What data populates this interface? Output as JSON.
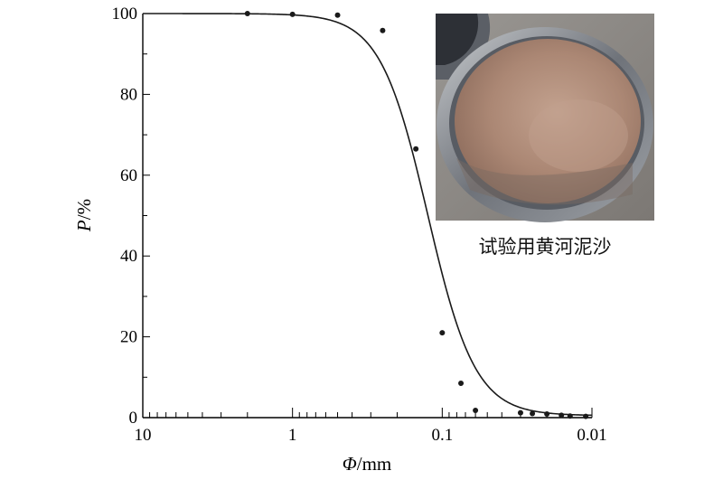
{
  "chart_data": {
    "type": "scatter",
    "title": "",
    "xlabel": {
      "symbol": "Φ",
      "unit": "/mm"
    },
    "ylabel": {
      "symbol": "P",
      "unit": "/%"
    },
    "x_scale": "log",
    "x_reversed": true,
    "xlim": [
      10,
      0.01
    ],
    "ylim": [
      0,
      100
    ],
    "x_ticks": [
      {
        "value": 10,
        "label": "10"
      },
      {
        "value": 1,
        "label": "1"
      },
      {
        "value": 0.1,
        "label": "0.1"
      },
      {
        "value": 0.01,
        "label": "0.01"
      }
    ],
    "y_ticks": [
      {
        "value": 0,
        "label": "0"
      },
      {
        "value": 20,
        "label": "20"
      },
      {
        "value": 40,
        "label": "40"
      },
      {
        "value": 60,
        "label": "60"
      },
      {
        "value": 80,
        "label": "80"
      },
      {
        "value": 100,
        "label": "100"
      }
    ],
    "grid": false,
    "series": [
      {
        "type": "scatter",
        "color": "#1a1a1a",
        "points": [
          {
            "x": 2.0,
            "y": 100
          },
          {
            "x": 1.0,
            "y": 99.8
          },
          {
            "x": 0.5,
            "y": 99.6
          },
          {
            "x": 0.25,
            "y": 95.8
          },
          {
            "x": 0.15,
            "y": 66.5
          },
          {
            "x": 0.1,
            "y": 21
          },
          {
            "x": 0.075,
            "y": 8.5
          },
          {
            "x": 0.06,
            "y": 1.8
          },
          {
            "x": 0.03,
            "y": 1.2
          },
          {
            "x": 0.025,
            "y": 1.0
          },
          {
            "x": 0.02,
            "y": 0.9
          },
          {
            "x": 0.016,
            "y": 0.6
          },
          {
            "x": 0.014,
            "y": 0.4
          },
          {
            "x": 0.011,
            "y": 0.3
          }
        ]
      },
      {
        "type": "line",
        "color": "#1a1a1a",
        "fit": {
          "d50": 0.125,
          "steepness": 6.3,
          "upper": 100,
          "lower": 0.5
        }
      }
    ]
  },
  "inset": {
    "caption": "试验用黄河泥沙",
    "colors": {
      "background": "#8e8a86",
      "ring": "#6d7177",
      "ring_highlight": "#b7babd",
      "sand": "#a27f6c",
      "sand_light": "#c2a08d"
    }
  }
}
